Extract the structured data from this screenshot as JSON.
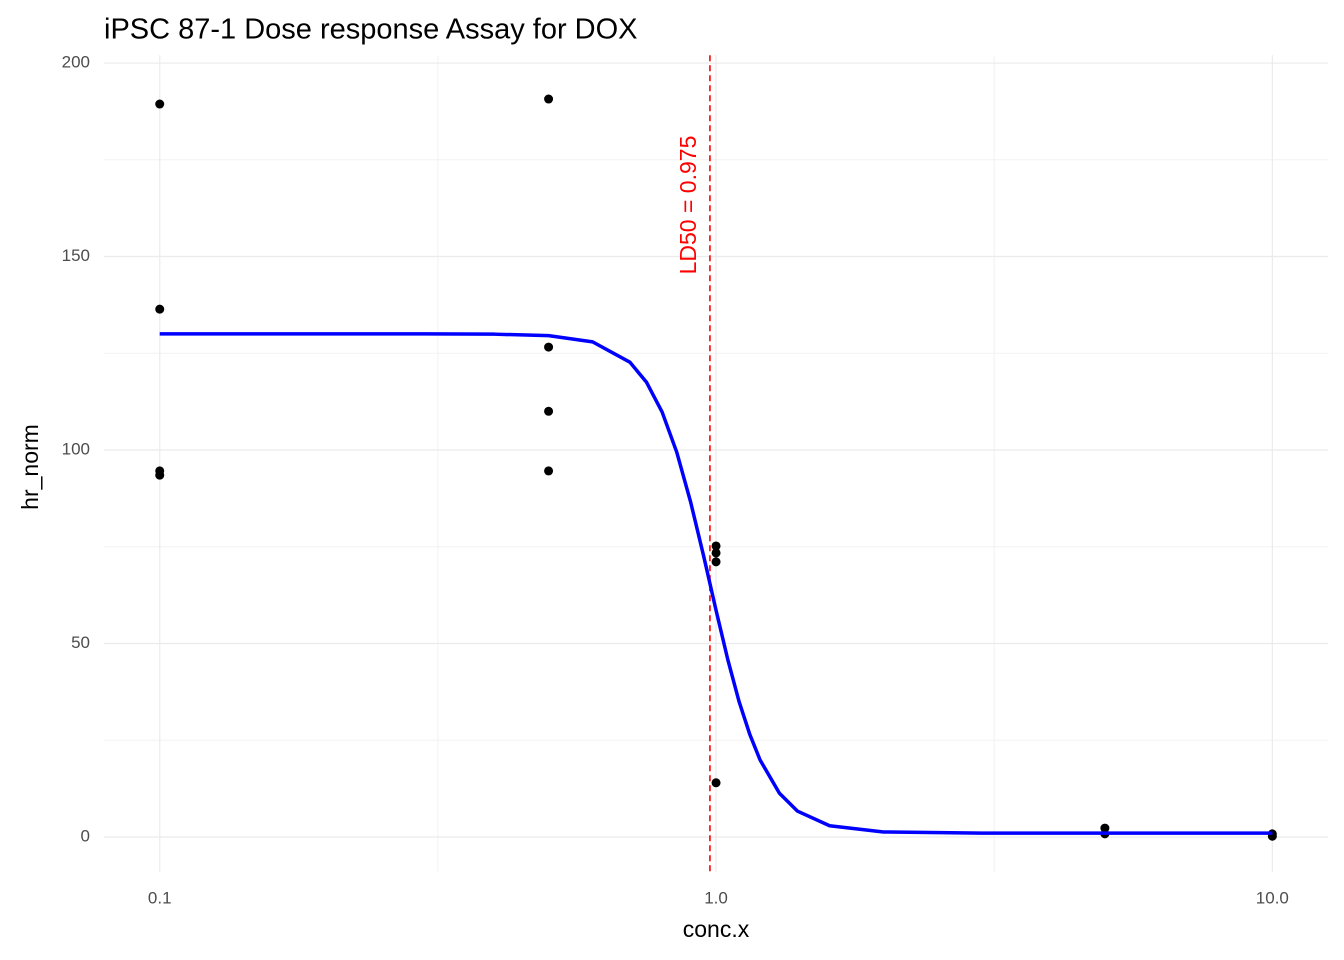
{
  "chart_data": {
    "type": "scatter",
    "title": "iPSC 87-1 Dose response Assay for DOX",
    "x_label": "conc.x",
    "y_label": "hr_norm",
    "x_log": true,
    "xlim": [
      0.0794,
      12.59
    ],
    "ylim": [
      -9,
      202
    ],
    "xticks": [
      {
        "value": 0.1,
        "label": "0.1"
      },
      {
        "value": 1,
        "label": "1.0"
      },
      {
        "value": 10,
        "label": "10.0"
      }
    ],
    "yticks": [
      0,
      50,
      100,
      150,
      200
    ],
    "x_minor_grid": [
      0.3162,
      3.162
    ],
    "y_minor_grid": [
      25,
      75,
      125,
      175
    ],
    "grid": true,
    "series": [
      {
        "type": "scatter",
        "color": "#000000",
        "x": [
          0.1,
          0.1,
          0.1,
          0.1,
          0.5,
          0.5,
          0.5,
          0.5,
          1,
          1,
          1,
          1,
          5,
          5,
          10,
          10
        ],
        "values": [
          189.4,
          136.4,
          94.6,
          93.5,
          190.7,
          126.6,
          110,
          94.6,
          75.2,
          73.4,
          71.1,
          14,
          2.3,
          0.8,
          0.8,
          0.2
        ]
      },
      {
        "type": "line",
        "color": "#0000ff",
        "x": [
          0.1,
          0.2,
          0.3,
          0.4,
          0.5,
          0.6,
          0.7,
          0.75,
          0.8,
          0.85,
          0.9,
          0.95,
          1.0,
          1.05,
          1.1,
          1.15,
          1.2,
          1.3,
          1.4,
          1.6,
          2,
          3,
          5,
          10
        ],
        "values": [
          130,
          130,
          130,
          129.93,
          129.56,
          127.95,
          122.7,
          117.5,
          109.8,
          99.4,
          86.6,
          72.6,
          58.6,
          45.8,
          35.0,
          26.5,
          19.9,
          11.3,
          6.7,
          2.9,
          1.29,
          1.0,
          1.0,
          1.0
        ]
      }
    ],
    "vline": {
      "x": 0.975,
      "color": "#ff0000",
      "label": "LD50 = 0.975"
    }
  }
}
